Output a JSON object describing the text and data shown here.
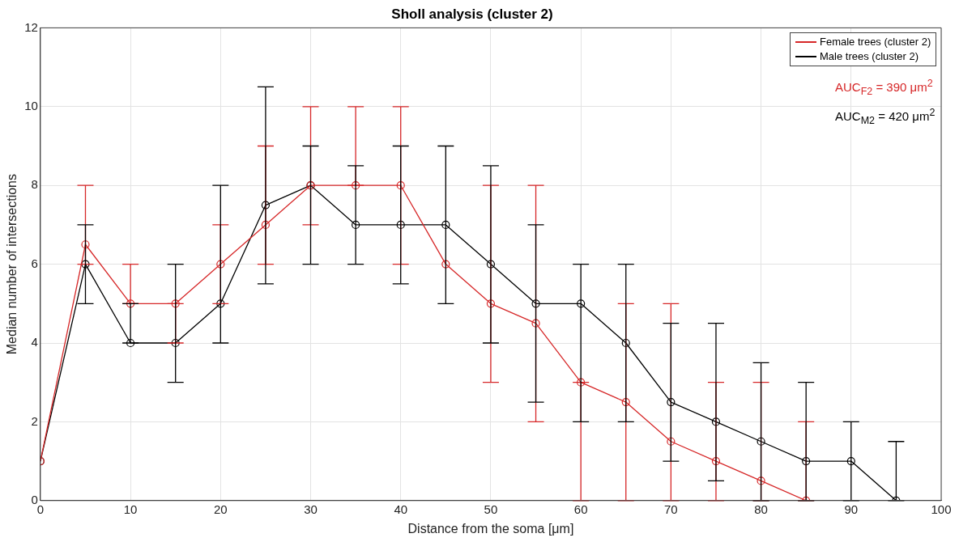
{
  "chart_data": {
    "type": "line",
    "title": "Sholl analysis (cluster 2)",
    "xlabel": "Distance from the soma [μm]",
    "ylabel": "Median number of intersections",
    "xlim": [
      0,
      100
    ],
    "xticks": [
      0,
      10,
      20,
      30,
      40,
      50,
      60,
      70,
      80,
      90,
      100
    ],
    "ylim": [
      0,
      12
    ],
    "yticks": [
      0,
      2,
      4,
      6,
      8,
      10,
      12
    ],
    "grid": true,
    "legend": "top right",
    "marker": "circle",
    "line_style": "solid",
    "x": [
      0,
      5,
      10,
      15,
      20,
      25,
      30,
      35,
      40,
      45,
      50,
      55,
      60,
      65,
      70,
      75,
      80,
      85,
      90,
      95
    ],
    "series": [
      {
        "name": "Female trees (cluster 2)",
        "color": "#d62728",
        "values": [
          1,
          6.5,
          5,
          5,
          6,
          7,
          8,
          8,
          8,
          6,
          5,
          4.5,
          3,
          2.5,
          1.5,
          1,
          0.5,
          0,
          null,
          null
        ],
        "errors": [
          null,
          [
            6,
            8
          ],
          [
            5,
            6
          ],
          [
            4,
            5
          ],
          [
            5,
            7
          ],
          [
            6,
            9
          ],
          [
            7,
            10
          ],
          [
            8,
            10
          ],
          [
            6,
            10
          ],
          null,
          [
            3,
            8
          ],
          [
            2,
            8
          ],
          [
            0,
            3
          ],
          [
            0,
            5
          ],
          [
            0,
            5
          ],
          [
            0,
            3
          ],
          [
            0,
            3
          ],
          [
            0,
            2
          ],
          null,
          null
        ]
      },
      {
        "name": "Male trees (cluster 2)",
        "color": "#000000",
        "values": [
          1,
          6,
          4,
          4,
          5,
          7.5,
          8,
          7,
          7,
          7,
          6,
          5,
          5,
          4,
          2.5,
          2,
          1.5,
          1,
          1,
          0
        ],
        "errors": [
          null,
          [
            5,
            7
          ],
          [
            4,
            5
          ],
          [
            3,
            6
          ],
          [
            4,
            8
          ],
          [
            5.5,
            10.5
          ],
          [
            6,
            9
          ],
          [
            6,
            8.5
          ],
          [
            5.5,
            9
          ],
          [
            5,
            9
          ],
          [
            4,
            8.5
          ],
          [
            2.5,
            7
          ],
          [
            2,
            6
          ],
          [
            2,
            6
          ],
          [
            1,
            4.5
          ],
          [
            0.5,
            4.5
          ],
          [
            0,
            3.5
          ],
          [
            0,
            3
          ],
          [
            0,
            2
          ],
          [
            0,
            1.5
          ]
        ]
      }
    ],
    "annotations": [
      "AUC$_{F2}$ = 390 μm$^{2}$",
      "AUC$_{M2}$ = 420 μm$^{2}$"
    ]
  }
}
